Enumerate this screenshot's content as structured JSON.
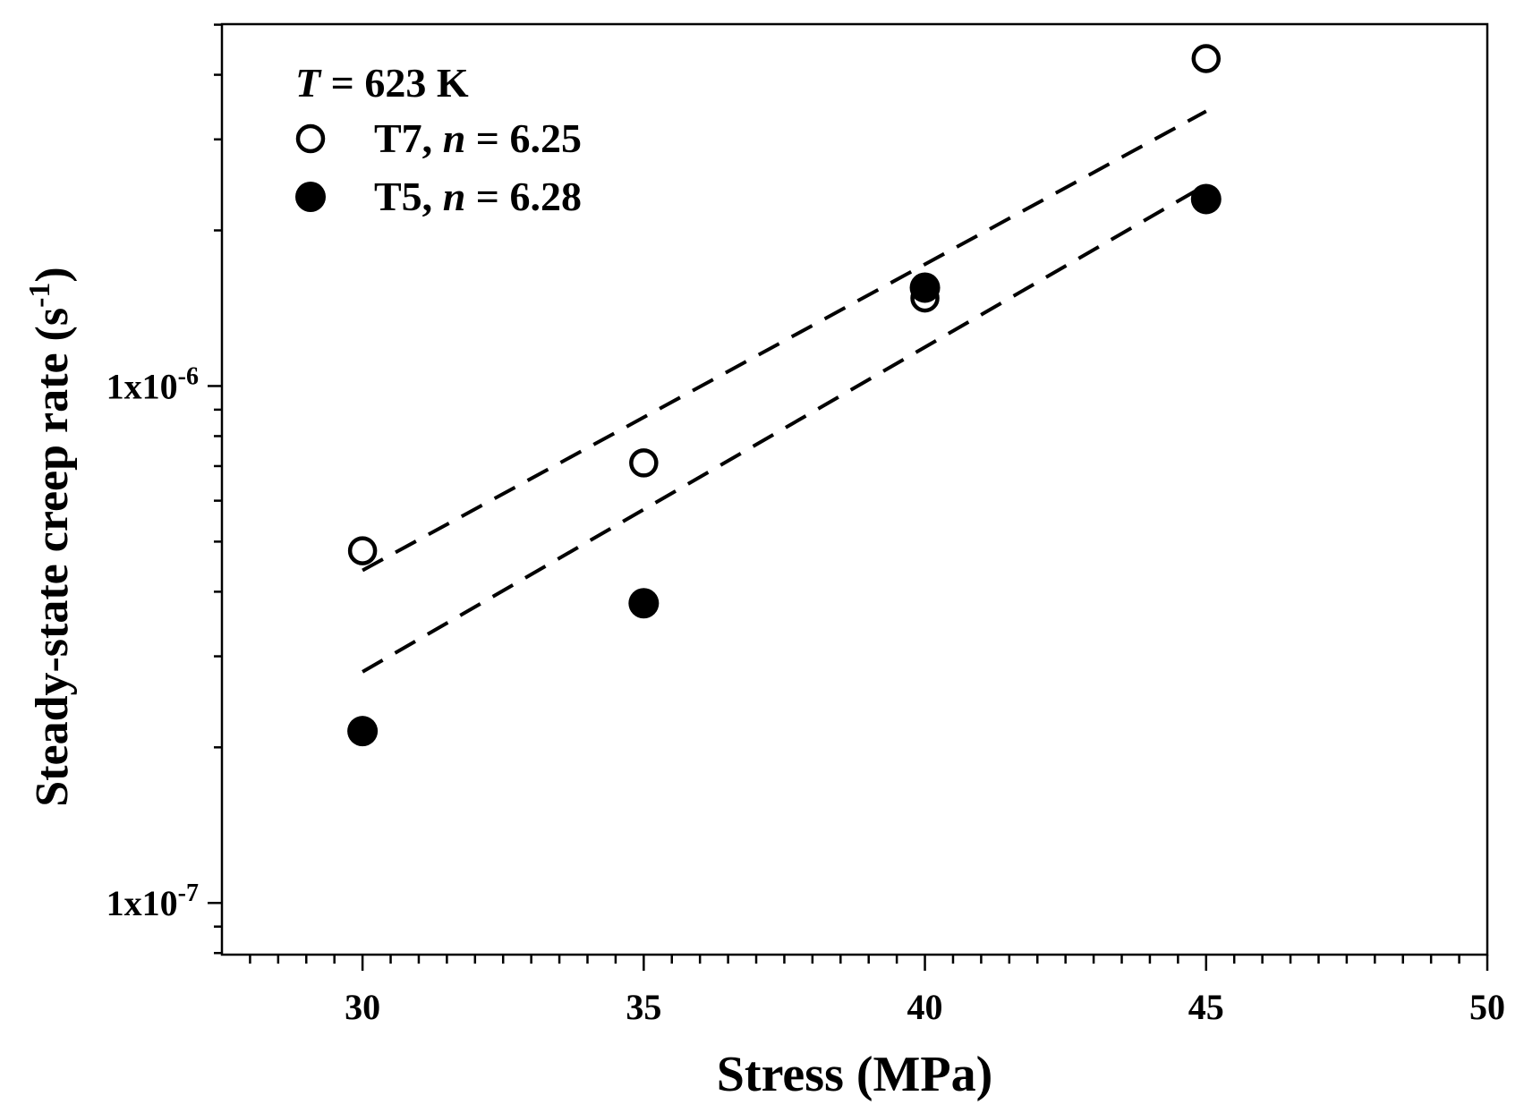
{
  "chart_data": {
    "type": "scatter",
    "title": "",
    "xlabel": "Stress (MPa)",
    "ylabel_main": "Steady-state creep rate (s",
    "ylabel_sup": "-1",
    "ylabel_close": ")",
    "xlim": [
      27.5,
      50
    ],
    "ylim_log10": [
      -7.1,
      -5.3
    ],
    "yscale": "log",
    "x_major_ticks": [
      30,
      35,
      40,
      45,
      50
    ],
    "x_minor_step": 0.5,
    "y_major_ticks": [
      {
        "value": -7,
        "mantissa": "1x10",
        "exponent": "-7"
      },
      {
        "value": -6,
        "mantissa": "1x10",
        "exponent": "-6"
      }
    ],
    "legend": {
      "position": "top-left",
      "title_var": "T",
      "title_rest": " = 623 K",
      "entries": [
        {
          "label": "T7, ",
          "var": "n",
          "value": " = 6.25",
          "marker": "open-circle"
        },
        {
          "label": "T5, ",
          "var": "n",
          "value": " = 6.28",
          "marker": "filled-circle"
        }
      ]
    },
    "series": [
      {
        "name": "T7",
        "marker": "open-circle",
        "points": [
          {
            "x": 30,
            "y": 4.8e-07
          },
          {
            "x": 35,
            "y": 7.1e-07
          },
          {
            "x": 40,
            "y": 1.48e-06
          },
          {
            "x": 45,
            "y": 4.3e-06
          }
        ],
        "fit": {
          "x": [
            30,
            45
          ],
          "y": [
            4.4e-07,
            3.4e-06
          ]
        }
      },
      {
        "name": "T5",
        "marker": "filled-circle",
        "points": [
          {
            "x": 30,
            "y": 2.15e-07
          },
          {
            "x": 35,
            "y": 3.8e-07
          },
          {
            "x": 40,
            "y": 1.55e-06
          },
          {
            "x": 45,
            "y": 2.3e-06
          }
        ],
        "fit": {
          "x": [
            30,
            45
          ],
          "y": [
            2.8e-07,
            2.45e-06
          ]
        }
      }
    ]
  }
}
